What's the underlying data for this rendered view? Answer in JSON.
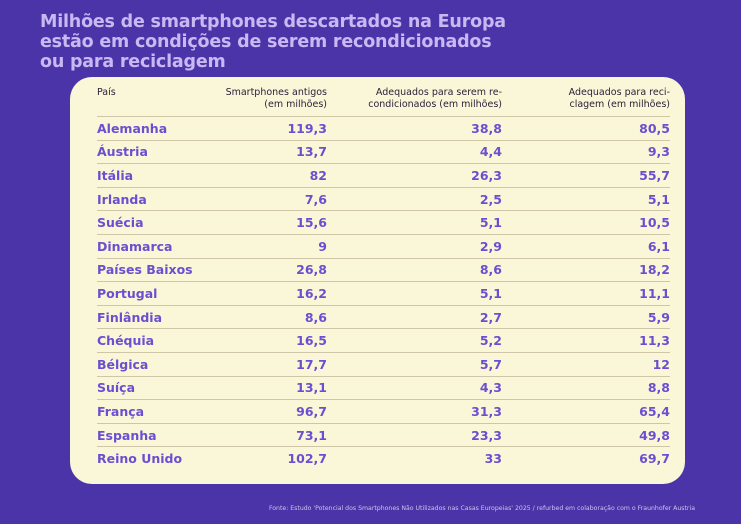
{
  "title_lines": [
    "Milhões de smartphones descartados na Europa",
    "estão em condições de serem recondicionados",
    "ou para reciclagem"
  ],
  "source": "Fonte: Estudo 'Potencial dos Smartphones Não Utilizados nas Casas Europeias' 2025 / refurbed em colaboração com o Fraunhofer Austria",
  "colors": {
    "background": "#4a34a8",
    "card": "#faf6d8",
    "accent": "#6b4fd0",
    "title": "#c9b8f2"
  },
  "chart_data": {
    "type": "table",
    "title": "Milhões de smartphones descartados na Europa estão em condições de serem recondicionados ou para reciclagem",
    "columns": [
      [
        "País"
      ],
      [
        "Smartphones antigos",
        "(em milhões)"
      ],
      [
        "Adequados para serem re-",
        "condicionados (em milhões)"
      ],
      [
        "Adequados para reci-",
        "clagem (em milhões)"
      ]
    ],
    "rows": [
      [
        "Alemanha",
        "119,3",
        "38,8",
        "80,5"
      ],
      [
        "Áustria",
        "13,7",
        "4,4",
        "9,3"
      ],
      [
        "Itália",
        "82",
        "26,3",
        "55,7"
      ],
      [
        "Irlanda",
        "7,6",
        "2,5",
        "5,1"
      ],
      [
        "Suécia",
        "15,6",
        "5,1",
        "10,5"
      ],
      [
        "Dinamarca",
        "9",
        "2,9",
        "6,1"
      ],
      [
        "Países Baixos",
        "26,8",
        "8,6",
        "18,2"
      ],
      [
        "Portugal",
        "16,2",
        "5,1",
        "11,1"
      ],
      [
        "Finlândia",
        "8,6",
        "2,7",
        "5,9"
      ],
      [
        "Chéquia",
        "16,5",
        "5,2",
        "11,3"
      ],
      [
        "Bélgica",
        "17,7",
        "5,7",
        "12"
      ],
      [
        "Suíça",
        "13,1",
        "4,3",
        "8,8"
      ],
      [
        "França",
        "96,7",
        "31,3",
        "65,4"
      ],
      [
        "Espanha",
        "73,1",
        "23,3",
        "49,8"
      ],
      [
        "Reino Unido",
        "102,7",
        "33",
        "69,7"
      ]
    ]
  }
}
